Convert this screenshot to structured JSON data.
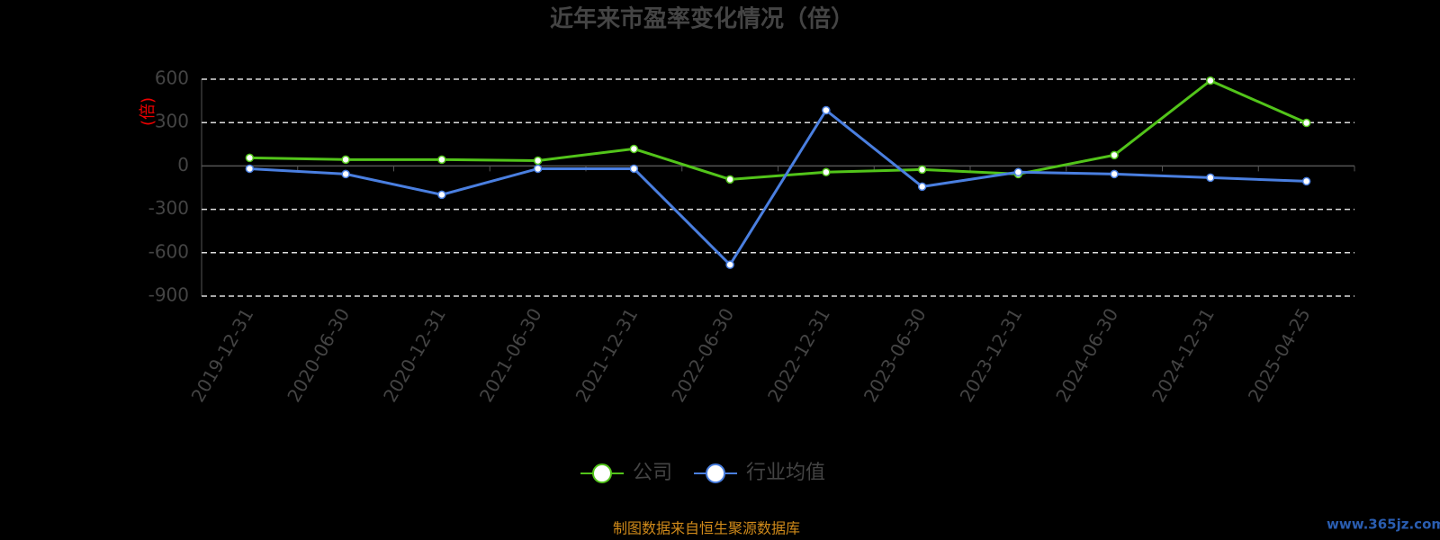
{
  "chart_data": {
    "type": "line",
    "title": "近年来市盈率变化情况（倍）",
    "y_label": "(倍)",
    "categories": [
      "2019-12-31",
      "2020-06-30",
      "2020-12-31",
      "2021-06-30",
      "2021-12-31",
      "2022-06-30",
      "2022-12-31",
      "2023-06-30",
      "2023-12-31",
      "2024-06-30",
      "2024-12-31",
      "2025-04-25"
    ],
    "series": [
      {
        "name": "公司",
        "color": "#52c41a",
        "values": [
          56,
          44,
          44,
          37,
          118,
          -93,
          -43,
          -25,
          -56,
          75,
          590,
          298
        ]
      },
      {
        "name": "行业均值",
        "color": "#4a7fe0",
        "values": [
          -19,
          -56,
          -199,
          -19,
          -19,
          -683,
          385,
          -143,
          -43,
          -56,
          -81,
          -106
        ]
      }
    ],
    "ylim": [
      -900,
      600
    ],
    "yticks": [
      -900,
      -600,
      -300,
      0,
      300,
      600
    ],
    "grid": true,
    "source": "制图数据来自恒生聚源数据库",
    "watermark": "www.365jz.com"
  }
}
